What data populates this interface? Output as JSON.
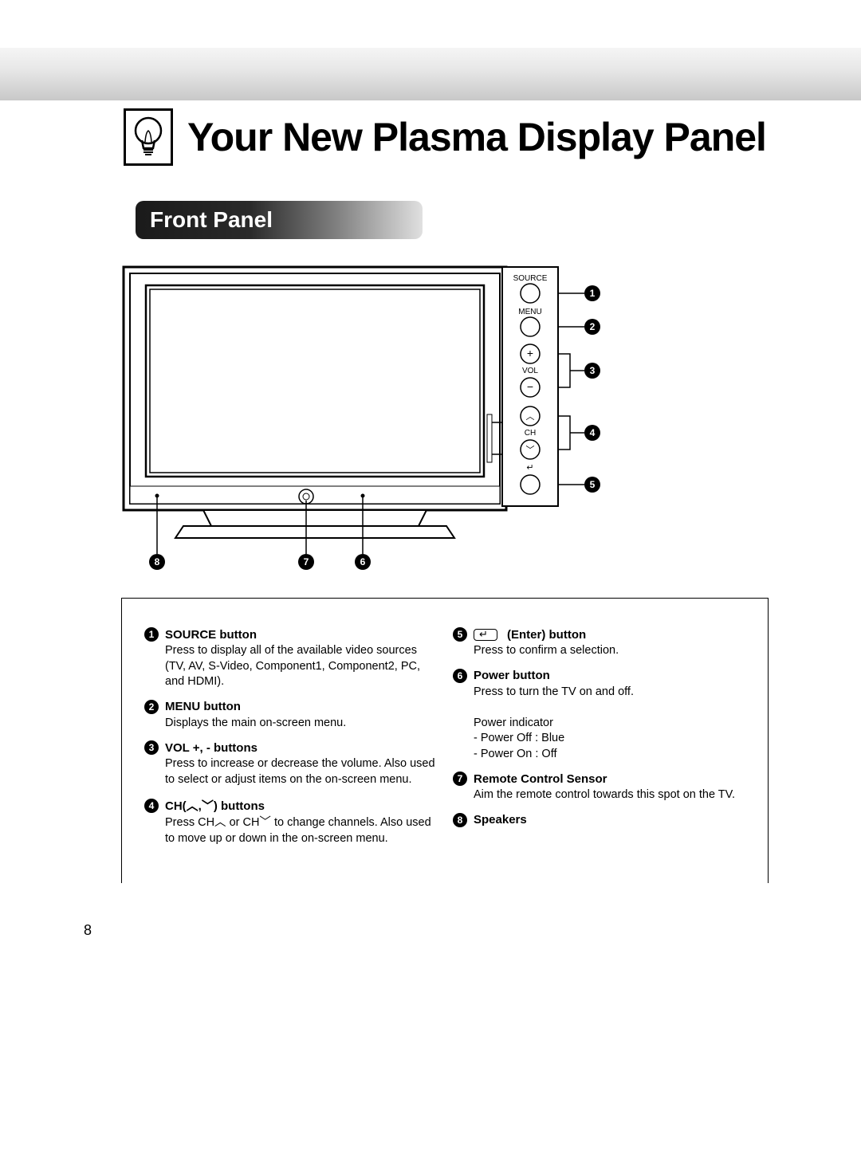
{
  "header": {
    "title": "Your New Plasma Display Panel"
  },
  "section": {
    "label": "Front Panel"
  },
  "buttons_panel": {
    "source_label": "SOURCE",
    "menu_label": "MENU",
    "vol_label": "VOL",
    "ch_label": "CH"
  },
  "callouts": {
    "c1": "1",
    "c2": "2",
    "c3": "3",
    "c4": "4",
    "c5": "5",
    "c6": "6",
    "c7": "7",
    "c8": "8"
  },
  "descriptions": {
    "left": [
      {
        "num": "1",
        "title": "SOURCE button",
        "body": "Press to display all of the available video sources (TV, AV, S-Video, Component1, Component2, PC, and HDMI)."
      },
      {
        "num": "2",
        "title": "MENU button",
        "body": "Displays the main on-screen menu."
      },
      {
        "num": "3",
        "title": "VOL +, - buttons",
        "body": "Press to increase or decrease the volume. Also used to select or adjust items on the on-screen menu."
      },
      {
        "num": "4",
        "title": "CH(︿,﹀) buttons",
        "body": "Press CH︿ or CH﹀ to change channels. Also used to move up or down in the on-screen menu."
      }
    ],
    "right": [
      {
        "num": "5",
        "title": "(Enter) button",
        "has_enter_icon": true,
        "body": "Press to confirm a selection."
      },
      {
        "num": "6",
        "title": "Power button",
        "body": "Press to turn the TV on and off.\n\nPower indicator\n- Power Off : Blue\n- Power On : Off"
      },
      {
        "num": "7",
        "title": "Remote Control Sensor",
        "body": "Aim the remote control towards this spot on the TV."
      },
      {
        "num": "8",
        "title": "Speakers",
        "body": ""
      }
    ]
  },
  "page_number": "8",
  "colors": {
    "black": "#000000",
    "white": "#ffffff",
    "brushed_top": "#f5f5f5",
    "brushed_bottom": "#c8c8c8"
  }
}
